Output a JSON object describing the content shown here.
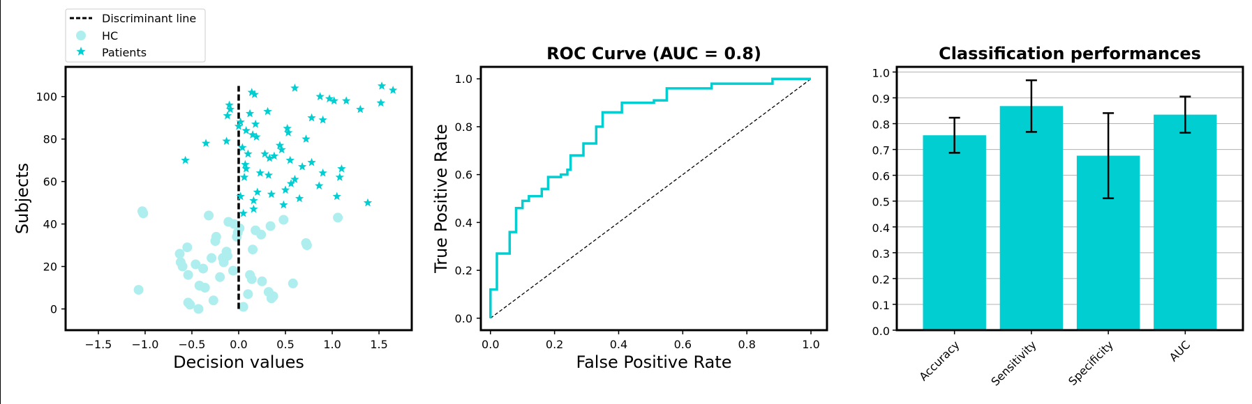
{
  "figure": {
    "background": "#ffffff",
    "accent": "#00ced1",
    "hc_color": "#aeeeee"
  },
  "chart_data": [
    {
      "type": "scatter",
      "title": "",
      "xlabel": "Decision values",
      "ylabel": "Subjects",
      "xlim": [
        -1.85,
        1.85
      ],
      "ylim": [
        -10,
        114
      ],
      "xticks": [
        -1.5,
        -1.0,
        -0.5,
        0.0,
        0.5,
        1.0,
        1.5
      ],
      "xtick_labels": [
        "−1.5",
        "−1.0",
        "−0.5",
        "0.0",
        "0.5",
        "1.0",
        "1.5"
      ],
      "yticks": [
        0,
        20,
        40,
        60,
        80,
        100
      ],
      "ytick_labels": [
        "0",
        "20",
        "40",
        "60",
        "80",
        "100"
      ],
      "legend": {
        "location": "upper-left-outside",
        "entries": [
          {
            "label": "Discriminant line",
            "kind": "dashed-line",
            "color": "#000000"
          },
          {
            "label": "HC",
            "kind": "circle",
            "color": "#aeeeee"
          },
          {
            "label": "Patients",
            "kind": "star",
            "color": "#00ced1"
          }
        ]
      },
      "discriminant_line": {
        "x": 0.0,
        "y_from": 0,
        "y_to": 105
      },
      "series": [
        {
          "name": "HC",
          "marker": "circle",
          "color": "#aeeeee",
          "points": [
            [
              -1.07,
              9
            ],
            [
              -1.03,
              46
            ],
            [
              -1.02,
              45
            ],
            [
              -0.63,
              26
            ],
            [
              -0.62,
              22
            ],
            [
              -0.6,
              20
            ],
            [
              -0.55,
              29
            ],
            [
              -0.54,
              16
            ],
            [
              -0.54,
              3
            ],
            [
              -0.52,
              2
            ],
            [
              -0.46,
              21
            ],
            [
              -0.43,
              0
            ],
            [
              -0.42,
              11
            ],
            [
              -0.38,
              19
            ],
            [
              -0.36,
              10
            ],
            [
              -0.32,
              44
            ],
            [
              -0.29,
              24
            ],
            [
              -0.27,
              4
            ],
            [
              -0.25,
              32
            ],
            [
              -0.24,
              34
            ],
            [
              -0.2,
              15
            ],
            [
              -0.17,
              24
            ],
            [
              -0.13,
              27
            ],
            [
              -0.12,
              25
            ],
            [
              -0.11,
              41
            ],
            [
              -0.06,
              18
            ],
            [
              -0.05,
              40
            ],
            [
              -0.02,
              34
            ],
            [
              -0.01,
              36
            ],
            [
              0.05,
              1
            ],
            [
              0.12,
              16
            ],
            [
              0.14,
              14
            ],
            [
              0.15,
              28
            ],
            [
              0.18,
              37
            ],
            [
              0.24,
              35
            ],
            [
              0.25,
              13
            ],
            [
              0.32,
              8
            ],
            [
              0.34,
              39
            ],
            [
              0.35,
              5
            ],
            [
              0.37,
              6
            ],
            [
              0.48,
              42
            ],
            [
              0.58,
              12
            ],
            [
              0.72,
              31
            ],
            [
              0.73,
              30
            ],
            [
              1.06,
              43
            ],
            [
              0.01,
              38
            ],
            [
              -0.16,
              22
            ],
            [
              0.1,
              7
            ]
          ]
        },
        {
          "name": "Patients",
          "marker": "star",
          "color": "#00ced1",
          "points": [
            [
              -0.57,
              70
            ],
            [
              -0.35,
              78
            ],
            [
              -0.13,
              79
            ],
            [
              -0.12,
              91
            ],
            [
              -0.1,
              96
            ],
            [
              -0.09,
              94
            ],
            [
              0.0,
              86
            ],
            [
              0.02,
              53
            ],
            [
              0.02,
              88
            ],
            [
              0.04,
              76
            ],
            [
              0.05,
              45
            ],
            [
              0.06,
              62
            ],
            [
              0.07,
              68
            ],
            [
              0.08,
              66
            ],
            [
              0.08,
              84
            ],
            [
              0.1,
              73
            ],
            [
              0.12,
              92
            ],
            [
              0.14,
              102
            ],
            [
              0.15,
              82
            ],
            [
              0.16,
              47
            ],
            [
              0.16,
              51
            ],
            [
              0.17,
              101
            ],
            [
              0.18,
              87
            ],
            [
              0.19,
              81
            ],
            [
              0.2,
              55
            ],
            [
              0.23,
              64
            ],
            [
              0.28,
              73
            ],
            [
              0.31,
              93
            ],
            [
              0.32,
              63
            ],
            [
              0.33,
              71
            ],
            [
              0.35,
              54
            ],
            [
              0.38,
              72
            ],
            [
              0.44,
              77
            ],
            [
              0.46,
              75
            ],
            [
              0.48,
              49
            ],
            [
              0.5,
              56
            ],
            [
              0.52,
              85
            ],
            [
              0.53,
              83
            ],
            [
              0.55,
              70
            ],
            [
              0.56,
              59
            ],
            [
              0.6,
              104
            ],
            [
              0.6,
              61
            ],
            [
              0.65,
              52
            ],
            [
              0.68,
              67
            ],
            [
              0.72,
              80
            ],
            [
              0.78,
              69
            ],
            [
              0.78,
              90
            ],
            [
              0.86,
              58
            ],
            [
              0.87,
              100
            ],
            [
              0.9,
              89
            ],
            [
              0.9,
              64
            ],
            [
              0.97,
              99
            ],
            [
              1.02,
              98
            ],
            [
              1.05,
              53
            ],
            [
              1.08,
              62
            ],
            [
              1.1,
              66
            ],
            [
              1.15,
              98
            ],
            [
              1.3,
              94
            ],
            [
              1.38,
              50
            ],
            [
              1.52,
              97
            ],
            [
              1.53,
              105
            ],
            [
              1.65,
              103
            ]
          ]
        }
      ]
    },
    {
      "type": "line",
      "title": "ROC Curve (AUC = 0.8)",
      "xlabel": "False Positive Rate",
      "ylabel": "True Positive Rate",
      "xlim": [
        -0.03,
        1.05
      ],
      "ylim": [
        -0.05,
        1.05
      ],
      "xticks": [
        0.0,
        0.2,
        0.4,
        0.6,
        0.8,
        1.0
      ],
      "xtick_labels": [
        "0.0",
        "0.2",
        "0.4",
        "0.6",
        "0.8",
        "1.0"
      ],
      "yticks": [
        0.0,
        0.2,
        0.4,
        0.6,
        0.8,
        1.0
      ],
      "ytick_labels": [
        "0.0",
        "0.2",
        "0.4",
        "0.6",
        "0.8",
        "1.0"
      ],
      "roc_curve": [
        [
          0.0,
          0.0
        ],
        [
          0.0,
          0.12
        ],
        [
          0.02,
          0.12
        ],
        [
          0.02,
          0.27
        ],
        [
          0.06,
          0.27
        ],
        [
          0.06,
          0.36
        ],
        [
          0.08,
          0.36
        ],
        [
          0.08,
          0.46
        ],
        [
          0.1,
          0.46
        ],
        [
          0.1,
          0.49
        ],
        [
          0.12,
          0.49
        ],
        [
          0.12,
          0.51
        ],
        [
          0.16,
          0.51
        ],
        [
          0.16,
          0.54
        ],
        [
          0.18,
          0.54
        ],
        [
          0.18,
          0.59
        ],
        [
          0.22,
          0.59
        ],
        [
          0.22,
          0.6
        ],
        [
          0.24,
          0.6
        ],
        [
          0.24,
          0.62
        ],
        [
          0.25,
          0.62
        ],
        [
          0.25,
          0.68
        ],
        [
          0.29,
          0.68
        ],
        [
          0.29,
          0.73
        ],
        [
          0.33,
          0.73
        ],
        [
          0.33,
          0.8
        ],
        [
          0.35,
          0.8
        ],
        [
          0.35,
          0.86
        ],
        [
          0.41,
          0.86
        ],
        [
          0.41,
          0.9
        ],
        [
          0.51,
          0.9
        ],
        [
          0.51,
          0.91
        ],
        [
          0.55,
          0.91
        ],
        [
          0.55,
          0.96
        ],
        [
          0.69,
          0.96
        ],
        [
          0.69,
          0.98
        ],
        [
          0.88,
          0.98
        ],
        [
          0.88,
          1.0
        ],
        [
          1.0,
          1.0
        ]
      ],
      "chance_line": [
        [
          0.0,
          0.0
        ],
        [
          1.0,
          1.0
        ]
      ]
    },
    {
      "type": "bar",
      "title": "Classification performances",
      "xlabel": "",
      "ylabel": "",
      "ylim": [
        0.0,
        1.02
      ],
      "grid": "horizontal",
      "yticks": [
        0.0,
        0.1,
        0.2,
        0.3,
        0.4,
        0.5,
        0.6,
        0.7,
        0.8,
        0.9,
        1.0
      ],
      "ytick_labels": [
        "0.0",
        "0.1",
        "0.2",
        "0.3",
        "0.4",
        "0.5",
        "0.6",
        "0.7",
        "0.8",
        "0.9",
        "1.0"
      ],
      "categories": [
        "Accuracy",
        "Sensitivity",
        "Specificity",
        "AUC"
      ],
      "values": [
        0.755,
        0.868,
        0.676,
        0.835
      ],
      "errors": [
        0.068,
        0.1,
        0.165,
        0.07
      ],
      "color": "#00ced1"
    }
  ]
}
